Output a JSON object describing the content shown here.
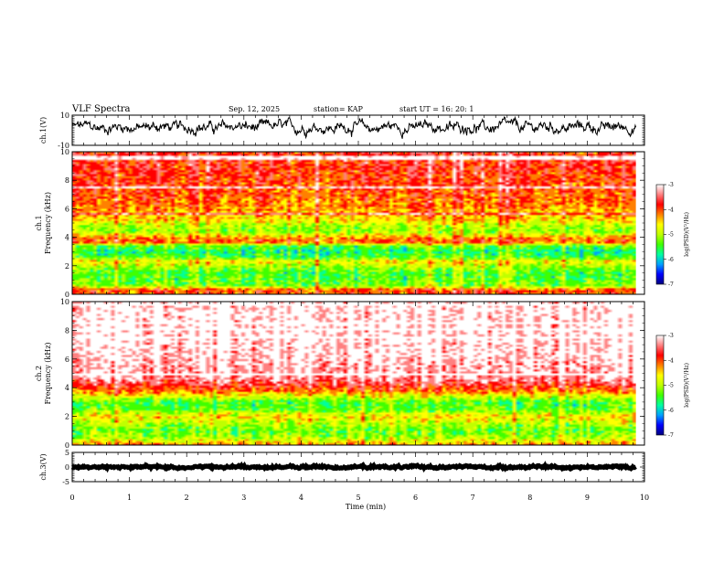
{
  "header": {
    "title": "VLF Spectra",
    "date": "Sep. 12, 2025",
    "station": "station= KAP",
    "start": "start  UT =   16: 20: 1"
  },
  "chart_data": [
    {
      "type": "line",
      "panel": "ch1-waveform",
      "ylabel": "ch.1(V)",
      "ylim": [
        -10,
        10
      ],
      "yticks": [
        "10",
        "-10"
      ],
      "xlim": [
        0,
        10
      ],
      "x_extent_min": 9.85,
      "signal_center": 2,
      "signal_amplitude": 4,
      "color": "#000000"
    },
    {
      "type": "heatmap",
      "panel": "ch1-spectrogram",
      "ylabel": "ch.1\nFrequency (kHz)",
      "ylim": [
        0,
        10
      ],
      "yticks": [
        "0",
        "2",
        "4",
        "6",
        "8",
        "10"
      ],
      "xlim": [
        0,
        10
      ],
      "x_extent_min": 9.85,
      "colorbar": {
        "label": "log(PSD)(V²/Hz)",
        "range": [
          -7,
          -3
        ],
        "ticks": [
          "-3",
          "-4",
          "-5",
          "-6",
          "-7"
        ],
        "colors": [
          "#000080",
          "#0000ff",
          "#00a0ff",
          "#00ffa0",
          "#40ff00",
          "#c0ff00",
          "#ffff00",
          "#ff8000",
          "#ff0000",
          "#ff8080",
          "#ffffff"
        ]
      },
      "frequency_profile_kHz_logPSD": [
        [
          0.0,
          -4.2
        ],
        [
          0.3,
          -4.0
        ],
        [
          0.6,
          -5.2
        ],
        [
          1.0,
          -5.3
        ],
        [
          1.5,
          -5.4
        ],
        [
          2.0,
          -5.0
        ],
        [
          2.3,
          -4.6
        ],
        [
          2.6,
          -5.4
        ],
        [
          3.0,
          -5.6
        ],
        [
          3.4,
          -5.3
        ],
        [
          3.7,
          -4.0
        ],
        [
          4.0,
          -4.4
        ],
        [
          4.4,
          -5.1
        ],
        [
          4.8,
          -5.0
        ],
        [
          5.2,
          -4.6
        ],
        [
          6.0,
          -4.3
        ],
        [
          7.0,
          -4.1
        ],
        [
          8.0,
          -4.0
        ],
        [
          9.0,
          -3.9
        ],
        [
          10.0,
          -3.9
        ]
      ]
    },
    {
      "type": "heatmap",
      "panel": "ch2-spectrogram",
      "ylabel": "ch.2\nFrequency (kHz)",
      "ylim": [
        0,
        10
      ],
      "yticks": [
        "0",
        "2",
        "4",
        "6",
        "8",
        "10"
      ],
      "xlim": [
        0,
        10
      ],
      "x_extent_min": 9.85,
      "colorbar": {
        "label": "log(PSD)(V²/Hz)",
        "range": [
          -7,
          -3
        ],
        "ticks": [
          "-3",
          "-4",
          "-5",
          "-6",
          "-7"
        ],
        "colors": [
          "#000080",
          "#0000ff",
          "#00a0ff",
          "#00ffa0",
          "#40ff00",
          "#c0ff00",
          "#ffff00",
          "#ff8000",
          "#ff0000",
          "#ff8080",
          "#ffffff"
        ]
      },
      "frequency_profile_kHz_logPSD": [
        [
          0.0,
          -4.3
        ],
        [
          0.5,
          -5.0
        ],
        [
          1.0,
          -5.3
        ],
        [
          1.5,
          -5.0
        ],
        [
          2.0,
          -4.6
        ],
        [
          2.5,
          -5.3
        ],
        [
          3.0,
          -5.4
        ],
        [
          3.4,
          -4.8
        ],
        [
          3.8,
          -4.2
        ],
        [
          4.2,
          -3.8
        ],
        [
          4.6,
          -3.5
        ],
        [
          5.0,
          -3.4
        ],
        [
          6.0,
          -3.3
        ],
        [
          7.0,
          -3.2
        ],
        [
          8.0,
          -3.2
        ],
        [
          9.0,
          -3.2
        ],
        [
          10.0,
          -3.2
        ]
      ]
    },
    {
      "type": "line",
      "panel": "ch3-waveform",
      "ylabel": "ch.3(V)",
      "ylim": [
        -5,
        5
      ],
      "yticks": [
        "5",
        "0",
        "-5"
      ],
      "xlim": [
        0,
        10
      ],
      "x_extent_min": 9.85,
      "signal_center": 0,
      "signal_amplitude": 0.4,
      "color": "#000000"
    }
  ],
  "xaxis": {
    "label": "Time (min)",
    "ticks": [
      "0",
      "1",
      "2",
      "3",
      "4",
      "5",
      "6",
      "7",
      "8",
      "9",
      "10"
    ]
  }
}
